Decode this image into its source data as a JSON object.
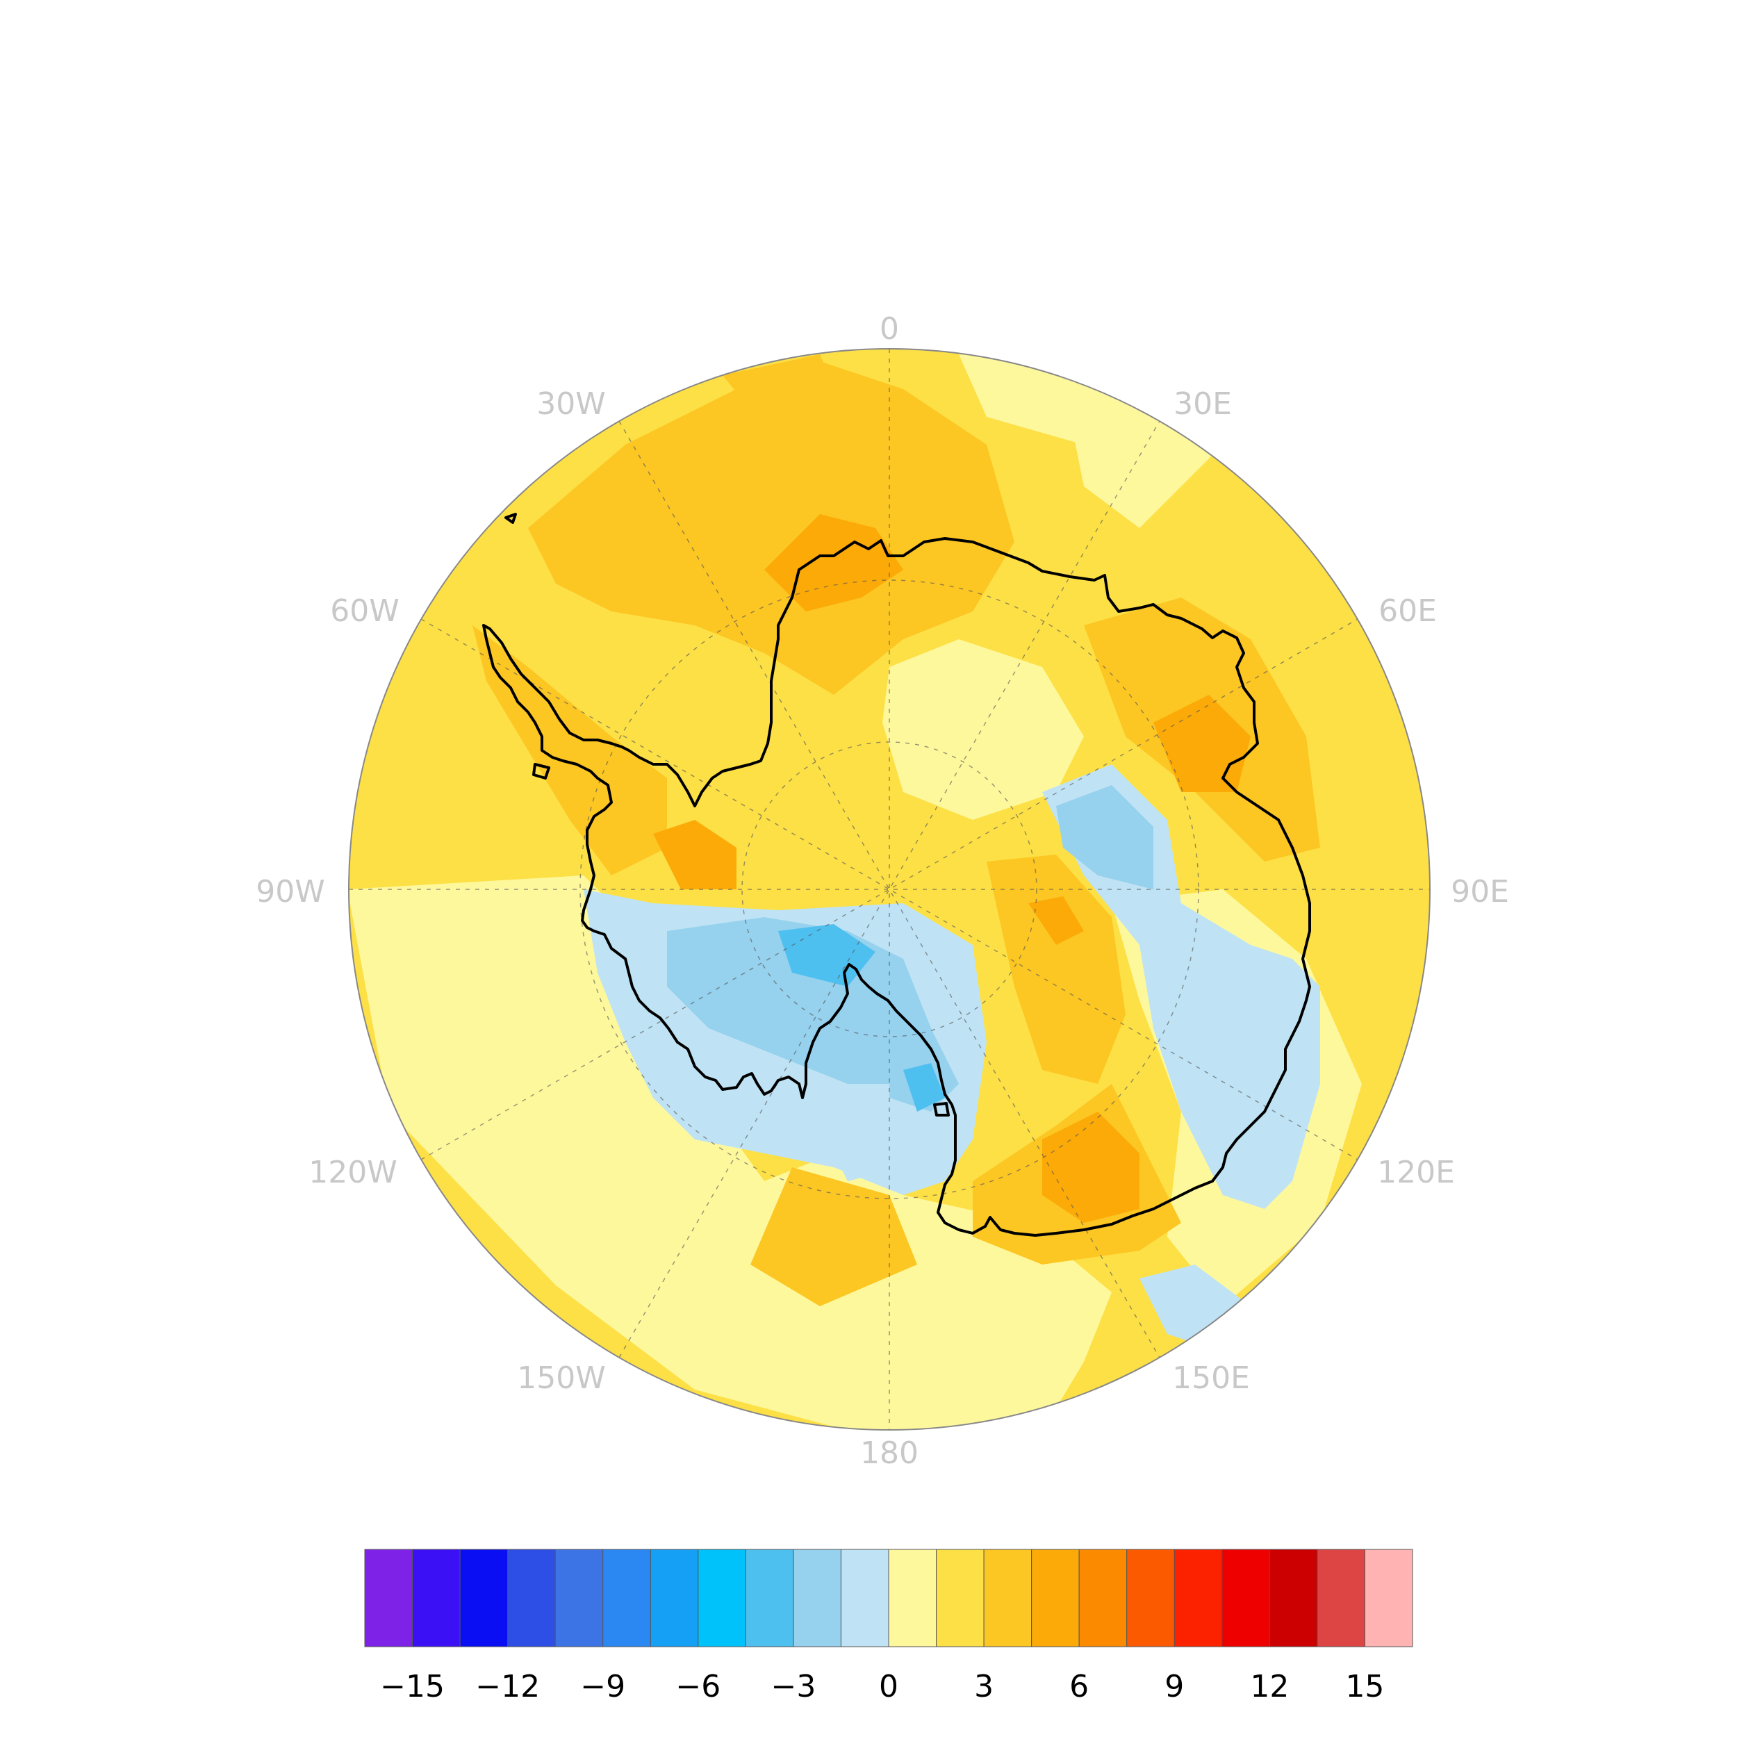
{
  "map": {
    "projection": "south-polar-stereographic",
    "center": "South Pole",
    "longitude_labels": [
      "0",
      "30E",
      "60E",
      "90E",
      "120E",
      "150E",
      "180",
      "150W",
      "120W",
      "90W",
      "60W",
      "30W"
    ],
    "continent": "Antarctica",
    "field": "anomaly (positive over most of the domain, negative over West Antarctica / Ross Sea sector)"
  },
  "colorbar": {
    "tick_labels": [
      "−15",
      "−12",
      "−9",
      "−6",
      "−3",
      "0",
      "3",
      "6",
      "9",
      "12",
      "15"
    ],
    "levels": [
      -15,
      -13.5,
      -12,
      -10.5,
      -9,
      -7.5,
      -6,
      -4.5,
      -3,
      -1.5,
      0,
      1.5,
      3,
      4.5,
      6,
      7.5,
      9,
      10.5,
      12,
      13.5,
      15
    ],
    "colors": [
      "#7f22e8",
      "#3c10f5",
      "#0a0ef2",
      "#2e4fe6",
      "#3c74e6",
      "#2b88f2",
      "#16a0f5",
      "#00c2fb",
      "#4ec0f0",
      "#96d1ee",
      "#bfe3f4",
      "#fef89d",
      "#fde046",
      "#fcc623",
      "#fbaa08",
      "#fb8a00",
      "#fc5a00",
      "#fc2200",
      "#ee0000",
      "#cc0000",
      "#dd4444",
      "#ffb3b3"
    ]
  },
  "colors": {
    "background": "#ffffff",
    "label_gray": "#c8c8c8",
    "coastline": "#000000"
  }
}
